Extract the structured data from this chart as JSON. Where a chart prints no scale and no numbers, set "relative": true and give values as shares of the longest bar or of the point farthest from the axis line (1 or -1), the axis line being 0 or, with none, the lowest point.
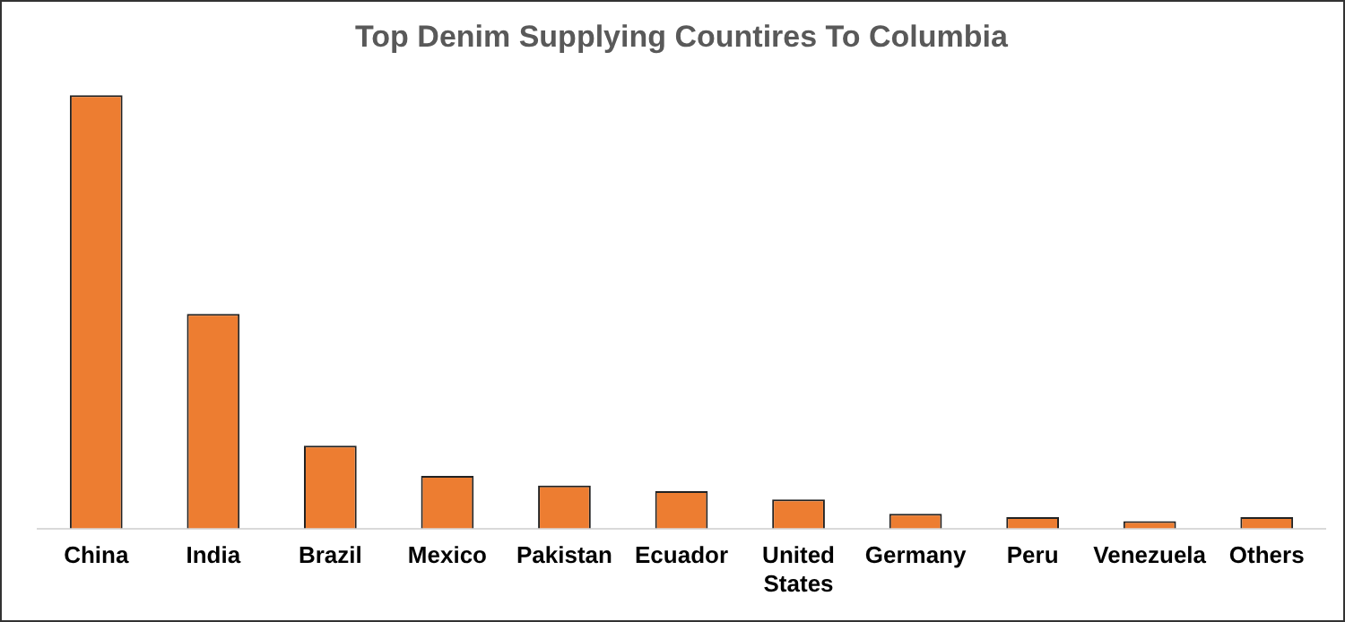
{
  "chart_data": {
    "type": "bar",
    "title": "Top Denim Supplying Countires To Columbia",
    "relative": true,
    "categories": [
      "China",
      "India",
      "Brazil",
      "Mexico",
      "Pakistan",
      "Ecuador",
      "United States",
      "Germany",
      "Peru",
      "Venezuela",
      "Others"
    ],
    "values": [
      1,
      0.495,
      0.191,
      0.121,
      0.099,
      0.086,
      0.067,
      0.034,
      0.026,
      0.017,
      0.026
    ],
    "color": "#ed7d31",
    "grid": false,
    "legend": false
  }
}
